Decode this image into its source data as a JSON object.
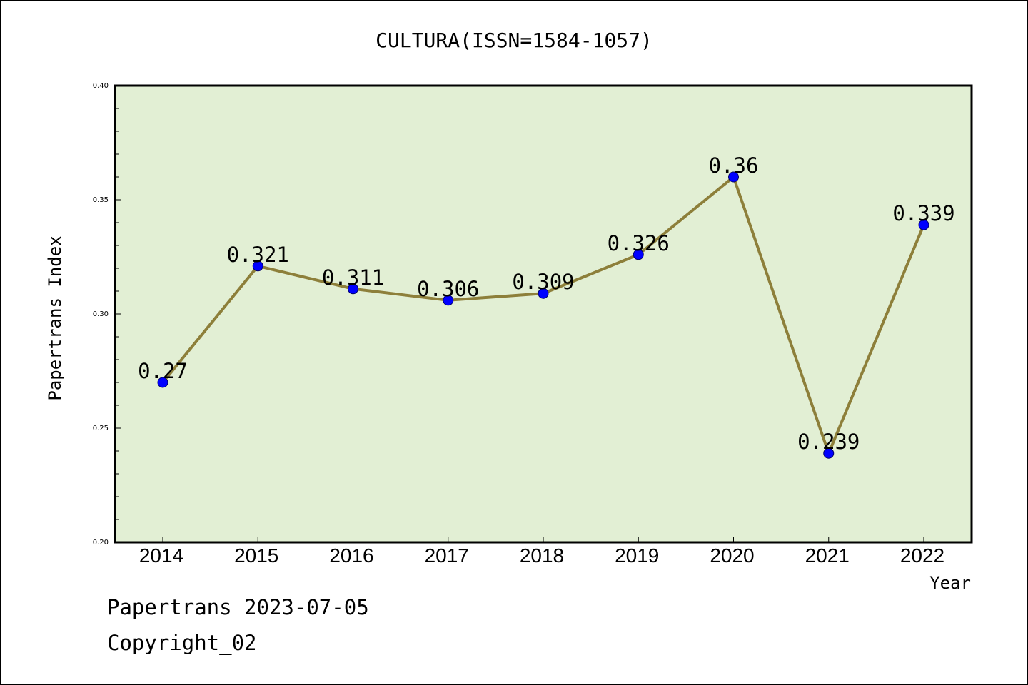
{
  "chart_data": {
    "type": "line",
    "title": "CULTURA(ISSN=1584-1057)",
    "xlabel": "Year",
    "ylabel": "Papertrans Index",
    "categories": [
      "2014",
      "2015",
      "2016",
      "2017",
      "2018",
      "2019",
      "2020",
      "2021",
      "2022"
    ],
    "series": [
      {
        "values": [
          0.27,
          0.321,
          0.311,
          0.306,
          0.309,
          0.326,
          0.36,
          0.239,
          0.339
        ],
        "labels": [
          "0.27",
          "0.321",
          "0.311",
          "0.306",
          "0.309",
          "0.326",
          "0.36",
          "0.239",
          "0.339"
        ]
      }
    ],
    "ylim": [
      0.2,
      0.4
    ],
    "yticks": [
      0.2,
      0.25,
      0.3,
      0.35,
      0.4
    ],
    "ytick_labels": [
      "0.20",
      "0.25",
      "0.30",
      "0.35",
      "0.40"
    ],
    "grid": false,
    "colors": {
      "plot_background": "#e2efd4",
      "line": "#8d7f3a",
      "marker": "#0000ff"
    }
  },
  "footer": {
    "source_line": "Papertrans 2023-07-05",
    "copyright_line": "Copyright_02"
  }
}
